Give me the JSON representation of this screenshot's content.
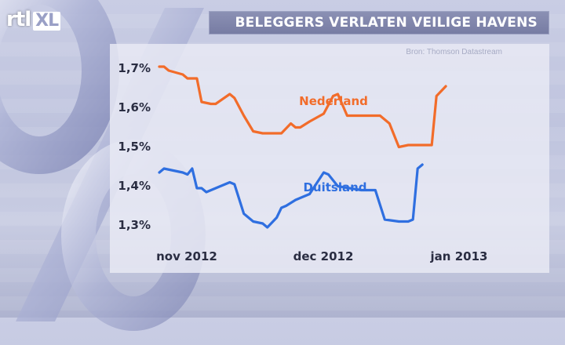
{
  "logo": {
    "rtl": "rtl",
    "xl": "XL"
  },
  "title": "BELEGGERS VERLATEN VEILIGE HAVENS",
  "source": "Bron: Thomson Datastream",
  "colors": {
    "nederland": "#f26c2a",
    "duitsland": "#2f6fe0"
  },
  "chart_data": {
    "type": "line",
    "title": "BELEGGERS VERLATEN VEILIGE HAVENS",
    "xlabel": "",
    "ylabel": "",
    "ylim": [
      1.25,
      1.75
    ],
    "yticks": [
      1.3,
      1.4,
      1.5,
      1.6,
      1.7
    ],
    "yticklabels": [
      "1,3%",
      "1,4%",
      "1,5%",
      "1,6%",
      "1,7%"
    ],
    "xlim": [
      "2012-10-31",
      "2013-01-09"
    ],
    "xticks": [
      "2012-11-01",
      "2012-12-01",
      "2013-01-01"
    ],
    "xticklabels": [
      "nov 2012",
      "dec 2012",
      "jan 2013"
    ],
    "grid": false,
    "legend": "inline labels",
    "series": [
      {
        "name": "Nederland",
        "color": "#f26c2a",
        "points": [
          [
            "2012-10-31",
            1.7
          ],
          [
            "2012-11-01",
            1.7
          ],
          [
            "2012-11-02",
            1.69
          ],
          [
            "2012-11-05",
            1.68
          ],
          [
            "2012-11-06",
            1.67
          ],
          [
            "2012-11-08",
            1.67
          ],
          [
            "2012-11-09",
            1.61
          ],
          [
            "2012-11-11",
            1.605
          ],
          [
            "2012-11-12",
            1.605
          ],
          [
            "2012-11-15",
            1.63
          ],
          [
            "2012-11-16",
            1.62
          ],
          [
            "2012-11-18",
            1.575
          ],
          [
            "2012-11-20",
            1.535
          ],
          [
            "2012-11-22",
            1.53
          ],
          [
            "2012-11-26",
            1.53
          ],
          [
            "2012-11-28",
            1.555
          ],
          [
            "2012-11-29",
            1.545
          ],
          [
            "2012-11-30",
            1.545
          ],
          [
            "2012-12-02",
            1.56
          ],
          [
            "2012-12-05",
            1.58
          ],
          [
            "2012-12-07",
            1.625
          ],
          [
            "2012-12-08",
            1.63
          ],
          [
            "2012-12-10",
            1.575
          ],
          [
            "2012-12-17",
            1.575
          ],
          [
            "2012-12-19",
            1.555
          ],
          [
            "2012-12-21",
            1.495
          ],
          [
            "2012-12-23",
            1.5
          ],
          [
            "2012-12-28",
            1.5
          ],
          [
            "2012-12-29",
            1.625
          ],
          [
            "2012-12-31",
            1.65
          ]
        ]
      },
      {
        "name": "Duitsland",
        "color": "#2f6fe0",
        "points": [
          [
            "2012-10-31",
            1.43
          ],
          [
            "2012-11-01",
            1.44
          ],
          [
            "2012-11-05",
            1.43
          ],
          [
            "2012-11-06",
            1.425
          ],
          [
            "2012-11-07",
            1.44
          ],
          [
            "2012-11-08",
            1.39
          ],
          [
            "2012-11-09",
            1.39
          ],
          [
            "2012-11-10",
            1.38
          ],
          [
            "2012-11-13",
            1.395
          ],
          [
            "2012-11-15",
            1.405
          ],
          [
            "2012-11-16",
            1.4
          ],
          [
            "2012-11-18",
            1.325
          ],
          [
            "2012-11-20",
            1.305
          ],
          [
            "2012-11-22",
            1.3
          ],
          [
            "2012-11-23",
            1.29
          ],
          [
            "2012-11-25",
            1.315
          ],
          [
            "2012-11-26",
            1.34
          ],
          [
            "2012-11-27",
            1.345
          ],
          [
            "2012-11-29",
            1.36
          ],
          [
            "2012-12-02",
            1.375
          ],
          [
            "2012-12-05",
            1.43
          ],
          [
            "2012-12-06",
            1.425
          ],
          [
            "2012-12-08",
            1.395
          ],
          [
            "2012-12-13",
            1.385
          ],
          [
            "2012-12-16",
            1.385
          ],
          [
            "2012-12-18",
            1.31
          ],
          [
            "2012-12-21",
            1.305
          ],
          [
            "2012-12-23",
            1.305
          ],
          [
            "2012-12-24",
            1.31
          ],
          [
            "2012-12-25",
            1.44
          ],
          [
            "2012-12-26",
            1.45
          ]
        ]
      }
    ]
  }
}
